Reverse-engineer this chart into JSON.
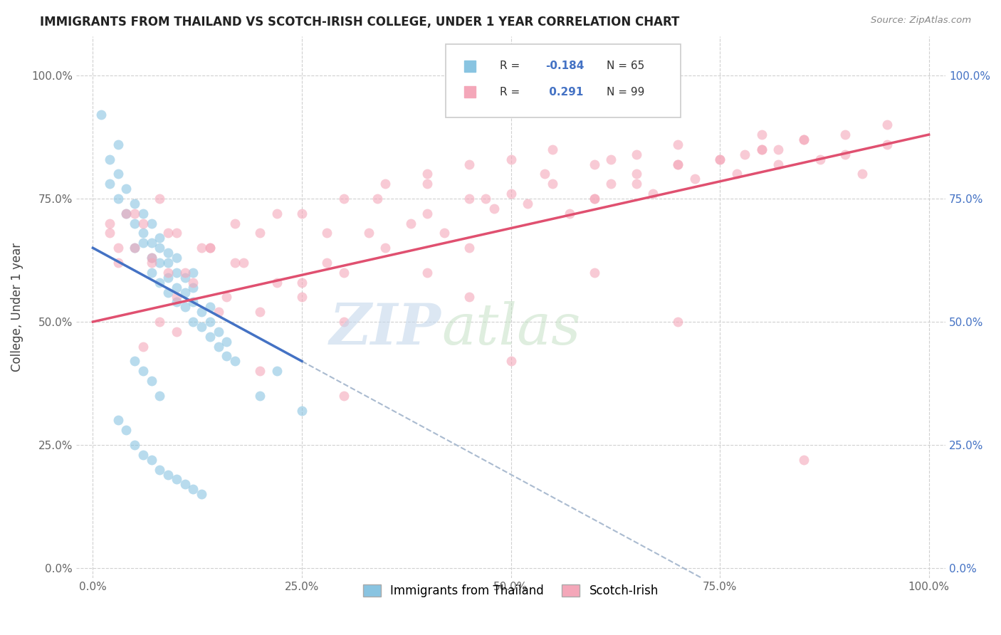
{
  "title": "IMMIGRANTS FROM THAILAND VS SCOTCH-IRISH COLLEGE, UNDER 1 YEAR CORRELATION CHART",
  "source_text": "Source: ZipAtlas.com",
  "ylabel": "College, Under 1 year",
  "x_tick_labels": [
    "0.0%",
    "25.0%",
    "50.0%",
    "75.0%",
    "100.0%"
  ],
  "x_tick_values": [
    0,
    25,
    50,
    75,
    100
  ],
  "y_tick_labels": [
    "0.0%",
    "25.0%",
    "50.0%",
    "75.0%",
    "100.0%"
  ],
  "y_tick_values": [
    0,
    25,
    50,
    75,
    100
  ],
  "legend_label1": "Immigrants from Thailand",
  "legend_label2": "Scotch-Irish",
  "R1": -0.184,
  "N1": 65,
  "R2": 0.291,
  "N2": 99,
  "color_blue": "#89C4E1",
  "color_pink": "#F4A7B9",
  "color_blue_line": "#4472C4",
  "color_pink_line": "#E05070",
  "color_dashed": "#AABBD0",
  "background_color": "#ffffff",
  "grid_color": "#d0d0d0",
  "blue_scatter_x": [
    1,
    2,
    2,
    3,
    3,
    3,
    4,
    4,
    5,
    5,
    5,
    6,
    6,
    6,
    7,
    7,
    7,
    7,
    8,
    8,
    8,
    8,
    9,
    9,
    9,
    9,
    10,
    10,
    10,
    10,
    11,
    11,
    11,
    12,
    12,
    12,
    12,
    13,
    13,
    14,
    14,
    14,
    15,
    15,
    16,
    16,
    17,
    3,
    4,
    5,
    6,
    7,
    8,
    9,
    10,
    11,
    12,
    13,
    20,
    22,
    25,
    5,
    6,
    7,
    8
  ],
  "blue_scatter_y": [
    92,
    78,
    83,
    75,
    80,
    86,
    72,
    77,
    65,
    70,
    74,
    66,
    68,
    72,
    60,
    63,
    66,
    70,
    58,
    62,
    65,
    67,
    56,
    59,
    62,
    64,
    54,
    57,
    60,
    63,
    53,
    56,
    59,
    50,
    54,
    57,
    60,
    49,
    52,
    47,
    50,
    53,
    45,
    48,
    43,
    46,
    42,
    30,
    28,
    25,
    23,
    22,
    20,
    19,
    18,
    17,
    16,
    15,
    35,
    40,
    32,
    42,
    40,
    38,
    35
  ],
  "pink_scatter_x": [
    2,
    3,
    4,
    5,
    6,
    7,
    8,
    9,
    10,
    12,
    14,
    16,
    18,
    20,
    22,
    25,
    28,
    30,
    33,
    35,
    38,
    40,
    42,
    45,
    48,
    50,
    52,
    55,
    57,
    60,
    62,
    65,
    67,
    70,
    72,
    75,
    77,
    80,
    82,
    85,
    87,
    90,
    92,
    95,
    2,
    3,
    5,
    7,
    9,
    11,
    14,
    17,
    20,
    25,
    30,
    35,
    40,
    45,
    50,
    55,
    60,
    65,
    70,
    75,
    80,
    85,
    90,
    6,
    8,
    10,
    13,
    17,
    22,
    28,
    34,
    40,
    47,
    54,
    62,
    70,
    78,
    85,
    30,
    45,
    60,
    30,
    50,
    70,
    20,
    40,
    60,
    80,
    10,
    25,
    45,
    65,
    82,
    95,
    15
  ],
  "pink_scatter_y": [
    68,
    62,
    72,
    65,
    70,
    63,
    75,
    60,
    68,
    58,
    65,
    55,
    62,
    52,
    58,
    58,
    62,
    60,
    68,
    65,
    70,
    72,
    68,
    75,
    73,
    76,
    74,
    78,
    72,
    75,
    78,
    80,
    76,
    82,
    79,
    83,
    80,
    85,
    82,
    87,
    83,
    84,
    80,
    86,
    70,
    65,
    72,
    62,
    68,
    60,
    65,
    62,
    68,
    72,
    75,
    78,
    80,
    82,
    83,
    85,
    82,
    84,
    86,
    83,
    85,
    87,
    88,
    45,
    50,
    55,
    65,
    70,
    72,
    68,
    75,
    78,
    75,
    80,
    83,
    82,
    84,
    22,
    50,
    55,
    60,
    35,
    42,
    50,
    40,
    60,
    75,
    88,
    48,
    55,
    65,
    78,
    85,
    90,
    52
  ]
}
